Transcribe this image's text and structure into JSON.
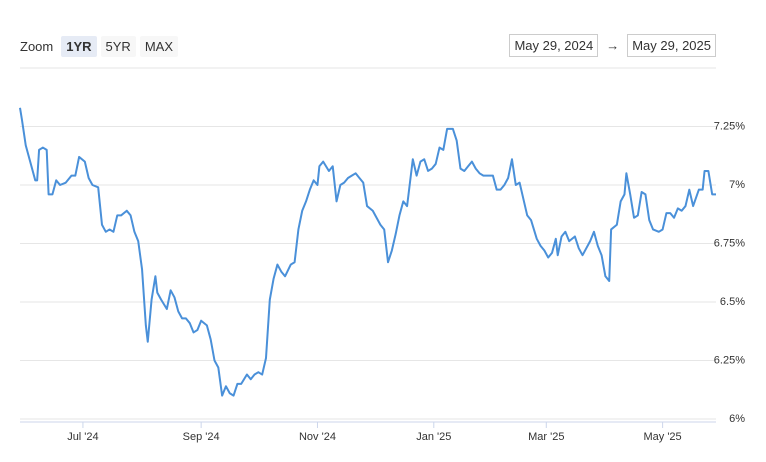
{
  "range_selector": {
    "label": "Zoom",
    "buttons": [
      "1YR",
      "5YR",
      "MAX"
    ],
    "from": "May 29, 2024",
    "arrow": "→",
    "to": "May 29, 2025"
  },
  "chart_data": {
    "type": "line",
    "color": "#4a90d9",
    "grid": true,
    "xlim": [
      "2024-05-29",
      "2025-05-29"
    ],
    "xticks": [
      {
        "value": "2024-07-01",
        "label": "Jul '24"
      },
      {
        "value": "2024-09-01",
        "label": "Sep '24"
      },
      {
        "value": "2024-11-01",
        "label": "Nov '24"
      },
      {
        "value": "2025-01-01",
        "label": "Jan '25"
      },
      {
        "value": "2025-03-01",
        "label": "Mar '25"
      },
      {
        "value": "2025-05-01",
        "label": "May '25"
      }
    ],
    "ylim": [
      6,
      7.5
    ],
    "yticks": [
      {
        "value": 6,
        "label": "6%"
      },
      {
        "value": 6.25,
        "label": "6.25%"
      },
      {
        "value": 6.5,
        "label": "6.5%"
      },
      {
        "value": 6.75,
        "label": "6.75%"
      },
      {
        "value": 7,
        "label": "7%"
      },
      {
        "value": 7.25,
        "label": "7.25%"
      }
    ],
    "x": [
      "2024-05-29",
      "2024-05-30",
      "2024-06-01",
      "2024-06-04",
      "2024-06-06",
      "2024-06-07",
      "2024-06-08",
      "2024-06-10",
      "2024-06-12",
      "2024-06-13",
      "2024-06-15",
      "2024-06-17",
      "2024-06-19",
      "2024-06-22",
      "2024-06-25",
      "2024-06-27",
      "2024-06-29",
      "2024-07-02",
      "2024-07-04",
      "2024-07-06",
      "2024-07-09",
      "2024-07-11",
      "2024-07-13",
      "2024-07-15",
      "2024-07-17",
      "2024-07-19",
      "2024-07-21",
      "2024-07-24",
      "2024-07-26",
      "2024-07-28",
      "2024-07-30",
      "2024-08-01",
      "2024-08-03",
      "2024-08-04",
      "2024-08-06",
      "2024-08-08",
      "2024-08-09",
      "2024-08-11",
      "2024-08-14",
      "2024-08-16",
      "2024-08-18",
      "2024-08-20",
      "2024-08-22",
      "2024-08-24",
      "2024-08-26",
      "2024-08-28",
      "2024-08-30",
      "2024-09-01",
      "2024-09-04",
      "2024-09-06",
      "2024-09-08",
      "2024-09-10",
      "2024-09-12",
      "2024-09-14",
      "2024-09-16",
      "2024-09-18",
      "2024-09-20",
      "2024-09-22",
      "2024-09-25",
      "2024-09-27",
      "2024-09-29",
      "2024-10-01",
      "2024-10-03",
      "2024-10-05",
      "2024-10-07",
      "2024-10-09",
      "2024-10-11",
      "2024-10-13",
      "2024-10-15",
      "2024-10-18",
      "2024-10-20",
      "2024-10-22",
      "2024-10-24",
      "2024-10-26",
      "2024-10-28",
      "2024-10-30",
      "2024-11-01",
      "2024-11-02",
      "2024-11-04",
      "2024-11-07",
      "2024-11-09",
      "2024-11-11",
      "2024-11-13",
      "2024-11-15",
      "2024-11-17",
      "2024-11-19",
      "2024-11-21",
      "2024-11-23",
      "2024-11-25",
      "2024-11-27",
      "2024-11-30",
      "2024-12-02",
      "2024-12-04",
      "2024-12-06",
      "2024-12-08",
      "2024-12-10",
      "2024-12-12",
      "2024-12-14",
      "2024-12-16",
      "2024-12-18",
      "2024-12-21",
      "2024-12-23",
      "2024-12-25",
      "2024-12-27",
      "2024-12-29",
      "2024-12-31",
      "2025-01-02",
      "2025-01-04",
      "2025-01-06",
      "2025-01-08",
      "2025-01-11",
      "2025-01-13",
      "2025-01-15",
      "2025-01-17",
      "2025-01-19",
      "2025-01-21",
      "2025-01-23",
      "2025-01-25",
      "2025-01-27",
      "2025-01-29",
      "2025-02-01",
      "2025-02-03",
      "2025-02-05",
      "2025-02-07",
      "2025-02-09",
      "2025-02-11",
      "2025-02-13",
      "2025-02-15",
      "2025-02-17",
      "2025-02-19",
      "2025-02-21",
      "2025-02-24",
      "2025-02-26",
      "2025-02-28",
      "2025-03-02",
      "2025-03-04",
      "2025-03-06",
      "2025-03-07",
      "2025-03-09",
      "2025-03-11",
      "2025-03-13",
      "2025-03-16",
      "2025-03-18",
      "2025-03-20",
      "2025-03-22",
      "2025-03-24",
      "2025-03-26",
      "2025-03-28",
      "2025-03-30",
      "2025-04-01",
      "2025-04-03",
      "2025-04-04",
      "2025-04-07",
      "2025-04-09",
      "2025-04-11",
      "2025-04-12",
      "2025-04-14",
      "2025-04-16",
      "2025-04-18",
      "2025-04-20",
      "2025-04-22",
      "2025-04-24",
      "2025-04-26",
      "2025-04-29",
      "2025-05-01",
      "2025-05-03",
      "2025-05-05",
      "2025-05-07",
      "2025-05-09",
      "2025-05-11",
      "2025-05-13",
      "2025-05-15",
      "2025-05-17",
      "2025-05-20",
      "2025-05-22",
      "2025-05-23",
      "2025-05-25",
      "2025-05-27",
      "2025-05-29"
    ],
    "values": [
      7.33,
      7.28,
      7.17,
      7.08,
      7.02,
      7.02,
      7.15,
      7.16,
      7.15,
      6.96,
      6.96,
      7.02,
      7.0,
      7.01,
      7.04,
      7.04,
      7.12,
      7.1,
      7.03,
      7.0,
      6.99,
      6.83,
      6.8,
      6.81,
      6.8,
      6.87,
      6.87,
      6.89,
      6.87,
      6.8,
      6.76,
      6.64,
      6.4,
      6.33,
      6.51,
      6.61,
      6.54,
      6.51,
      6.47,
      6.55,
      6.52,
      6.46,
      6.43,
      6.43,
      6.41,
      6.37,
      6.38,
      6.42,
      6.4,
      6.34,
      6.25,
      6.22,
      6.1,
      6.14,
      6.11,
      6.1,
      6.15,
      6.15,
      6.19,
      6.17,
      6.19,
      6.2,
      6.19,
      6.26,
      6.51,
      6.6,
      6.66,
      6.63,
      6.61,
      6.66,
      6.67,
      6.81,
      6.89,
      6.93,
      6.98,
      7.02,
      7.0,
      7.08,
      7.1,
      7.06,
      7.08,
      6.93,
      7.0,
      7.01,
      7.03,
      7.04,
      7.05,
      7.03,
      7.01,
      6.91,
      6.89,
      6.86,
      6.83,
      6.81,
      6.67,
      6.72,
      6.79,
      6.87,
      6.93,
      6.91,
      7.11,
      7.04,
      7.1,
      7.11,
      7.06,
      7.07,
      7.09,
      7.16,
      7.15,
      7.24,
      7.24,
      7.19,
      7.07,
      7.06,
      7.08,
      7.1,
      7.07,
      7.05,
      7.04,
      7.04,
      7.04,
      6.98,
      6.98,
      7.0,
      7.03,
      7.11,
      7.0,
      7.01,
      6.94,
      6.87,
      6.85,
      6.77,
      6.74,
      6.72,
      6.69,
      6.71,
      6.77,
      6.7,
      6.78,
      6.8,
      6.76,
      6.78,
      6.73,
      6.7,
      6.73,
      6.76,
      6.8,
      6.74,
      6.7,
      6.61,
      6.59,
      6.81,
      6.83,
      6.93,
      6.96,
      7.05,
      6.96,
      6.86,
      6.87,
      6.97,
      6.96,
      6.85,
      6.81,
      6.8,
      6.81,
      6.88,
      6.88,
      6.86,
      6.9,
      6.89,
      6.91,
      6.98,
      6.91,
      6.98,
      6.98,
      7.06,
      7.06,
      6.96,
      6.96
    ]
  }
}
